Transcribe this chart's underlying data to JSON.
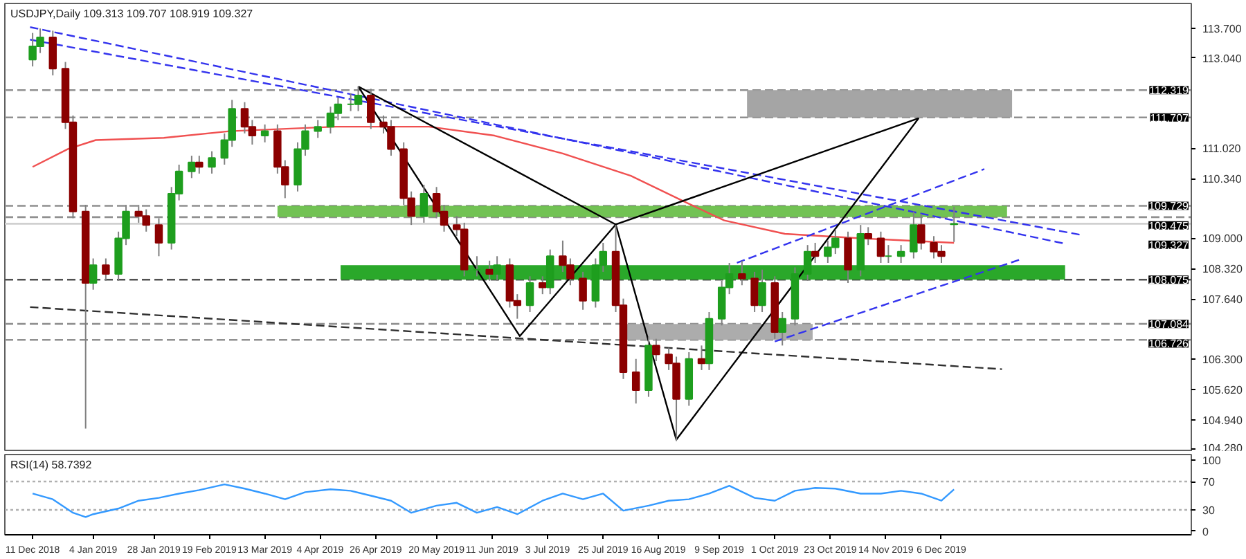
{
  "chart_data": [
    {
      "type": "candlestick",
      "title": "USDJPY,Daily 109.313 109.707 108.919 109.327",
      "tick_labels": "y",
      "grid": false,
      "x": [
        "2018-12-11",
        "2018-12-14",
        "2018-12-19",
        "2018-12-24",
        "2018-12-27",
        "2019-01-01",
        "2019-01-04",
        "2019-01-09",
        "2019-01-14",
        "2019-01-17",
        "2019-01-22",
        "2019-01-25",
        "2019-01-30",
        "2019-02-04",
        "2019-02-07",
        "2019-02-12",
        "2019-02-15",
        "2019-02-20",
        "2019-02-25",
        "2019-02-28",
        "2019-03-05",
        "2019-03-08",
        "2019-03-13",
        "2019-03-18",
        "2019-03-21",
        "2019-03-26",
        "2019-03-29",
        "2019-04-03",
        "2019-04-08",
        "2019-04-11",
        "2019-04-16",
        "2019-04-19",
        "2019-04-24",
        "2019-04-29",
        "2019-05-02",
        "2019-05-07",
        "2019-05-10",
        "2019-05-15",
        "2019-05-20",
        "2019-05-23",
        "2019-05-28",
        "2019-05-31",
        "2019-06-05",
        "2019-06-10",
        "2019-06-13",
        "2019-06-18",
        "2019-06-21",
        "2019-06-26",
        "2019-07-01",
        "2019-07-04",
        "2019-07-09",
        "2019-07-12",
        "2019-07-17",
        "2019-07-22",
        "2019-07-25",
        "2019-07-30",
        "2019-08-02",
        "2019-08-07",
        "2019-08-12",
        "2019-08-15",
        "2019-08-20",
        "2019-08-23",
        "2019-08-28",
        "2019-09-02",
        "2019-09-05",
        "2019-09-10",
        "2019-09-13",
        "2019-09-18",
        "2019-09-23",
        "2019-09-26",
        "2019-10-01",
        "2019-10-04",
        "2019-10-09",
        "2019-10-14",
        "2019-10-17",
        "2019-10-22",
        "2019-10-25",
        "2019-10-30",
        "2019-11-04",
        "2019-11-07",
        "2019-11-12",
        "2019-11-15",
        "2019-11-20",
        "2019-11-25",
        "2019-11-28",
        "2019-12-03",
        "2019-12-06",
        "2019-12-11"
      ],
      "ohlc": [
        [
          113.0,
          113.6,
          112.85,
          113.3
        ],
        [
          113.3,
          113.7,
          113.15,
          113.5
        ],
        [
          113.5,
          113.65,
          112.65,
          112.8
        ],
        [
          112.8,
          112.95,
          111.45,
          111.6
        ],
        [
          111.6,
          111.75,
          109.45,
          109.6
        ],
        [
          109.6,
          109.75,
          104.74,
          108.0
        ],
        [
          108.0,
          108.55,
          107.85,
          108.4
        ],
        [
          108.4,
          108.55,
          108.05,
          108.2
        ],
        [
          108.2,
          109.15,
          108.05,
          109.0
        ],
        [
          109.0,
          109.75,
          108.85,
          109.6
        ],
        [
          109.6,
          109.75,
          109.35,
          109.5
        ],
        [
          109.5,
          109.65,
          109.15,
          109.3
        ],
        [
          109.3,
          109.45,
          108.6,
          108.9
        ],
        [
          108.9,
          110.15,
          108.75,
          110.0
        ],
        [
          110.0,
          110.65,
          109.85,
          110.5
        ],
        [
          110.5,
          110.85,
          110.35,
          110.7
        ],
        [
          110.7,
          110.85,
          110.45,
          110.6
        ],
        [
          110.6,
          110.95,
          110.45,
          110.8
        ],
        [
          110.8,
          111.35,
          110.65,
          111.2
        ],
        [
          111.2,
          112.1,
          111.05,
          111.9
        ],
        [
          111.9,
          112.05,
          111.35,
          111.5
        ],
        [
          111.5,
          111.65,
          111.1,
          111.3
        ],
        [
          111.3,
          111.55,
          111.15,
          111.4
        ],
        [
          111.4,
          111.55,
          110.45,
          110.6
        ],
        [
          110.6,
          110.75,
          109.9,
          110.2
        ],
        [
          110.2,
          111.15,
          110.05,
          111.0
        ],
        [
          111.0,
          111.55,
          110.85,
          111.4
        ],
        [
          111.4,
          111.65,
          111.25,
          111.5
        ],
        [
          111.5,
          111.95,
          111.35,
          111.8
        ],
        [
          111.8,
          112.15,
          111.65,
          112.0
        ],
        [
          112.0,
          112.25,
          111.85,
          112.0
        ],
        [
          112.0,
          112.4,
          111.85,
          112.2
        ],
        [
          112.2,
          112.35,
          111.45,
          111.6
        ],
        [
          111.6,
          111.75,
          111.35,
          111.5
        ],
        [
          111.5,
          111.65,
          110.85,
          111.0
        ],
        [
          111.0,
          111.15,
          109.75,
          109.9
        ],
        [
          109.9,
          110.05,
          109.3,
          109.5
        ],
        [
          109.5,
          110.2,
          109.35,
          110.0
        ],
        [
          110.0,
          110.15,
          109.45,
          109.6
        ],
        [
          109.6,
          109.75,
          109.15,
          109.3
        ],
        [
          109.3,
          109.5,
          109.05,
          109.2
        ],
        [
          109.2,
          109.35,
          108.15,
          108.3
        ],
        [
          108.3,
          108.6,
          108.15,
          108.3
        ],
        [
          108.3,
          108.5,
          108.05,
          108.2
        ],
        [
          108.2,
          108.6,
          108.05,
          108.4
        ],
        [
          108.4,
          108.55,
          107.45,
          107.6
        ],
        [
          107.6,
          107.75,
          107.2,
          107.5
        ],
        [
          107.5,
          108.15,
          107.35,
          108.0
        ],
        [
          108.0,
          108.15,
          107.75,
          107.9
        ],
        [
          107.9,
          108.75,
          107.75,
          108.6
        ],
        [
          108.6,
          108.95,
          108.25,
          108.4
        ],
        [
          108.4,
          108.55,
          107.95,
          108.1
        ],
        [
          108.1,
          108.25,
          107.4,
          107.6
        ],
        [
          107.6,
          108.55,
          107.45,
          108.4
        ],
        [
          108.4,
          108.9,
          108.25,
          108.7
        ],
        [
          108.7,
          109.3,
          107.35,
          107.5
        ],
        [
          107.5,
          107.65,
          105.85,
          106.0
        ],
        [
          106.0,
          106.3,
          105.3,
          105.6
        ],
        [
          105.6,
          106.8,
          105.45,
          106.6
        ],
        [
          106.6,
          106.75,
          106.25,
          106.4
        ],
        [
          106.4,
          106.55,
          106.05,
          106.2
        ],
        [
          106.2,
          106.35,
          104.46,
          105.4
        ],
        [
          105.4,
          106.45,
          105.25,
          106.3
        ],
        [
          106.3,
          106.6,
          106.05,
          106.2
        ],
        [
          106.2,
          107.35,
          106.05,
          107.2
        ],
        [
          107.2,
          108.05,
          107.05,
          107.9
        ],
        [
          107.9,
          108.45,
          107.75,
          108.2
        ],
        [
          108.2,
          108.5,
          107.95,
          108.1
        ],
        [
          108.1,
          108.25,
          107.35,
          107.5
        ],
        [
          107.5,
          108.3,
          107.35,
          108.0
        ],
        [
          108.0,
          108.15,
          106.75,
          106.9
        ],
        [
          106.9,
          107.35,
          106.6,
          107.2
        ],
        [
          107.2,
          108.35,
          107.05,
          108.2
        ],
        [
          108.2,
          108.85,
          108.05,
          108.7
        ],
        [
          108.7,
          108.9,
          108.45,
          108.6
        ],
        [
          108.6,
          108.95,
          108.45,
          108.8
        ],
        [
          108.8,
          109.2,
          108.65,
          109.0
        ],
        [
          109.0,
          109.15,
          108.0,
          108.3
        ],
        [
          108.3,
          109.3,
          108.15,
          109.1
        ],
        [
          109.1,
          109.25,
          108.85,
          109.0
        ],
        [
          109.0,
          109.15,
          108.45,
          108.6
        ],
        [
          108.6,
          108.85,
          108.45,
          108.6
        ],
        [
          108.6,
          108.85,
          108.45,
          108.7
        ],
        [
          108.7,
          109.6,
          108.55,
          109.3
        ],
        [
          109.3,
          109.55,
          108.75,
          108.9
        ],
        [
          108.9,
          109.05,
          108.55,
          108.7
        ],
        [
          108.7,
          108.85,
          108.45,
          108.6
        ],
        [
          109.313,
          109.707,
          108.919,
          109.327
        ]
      ],
      "xlim": [
        "2018-11-30",
        "2020-03-14"
      ],
      "ylim": [
        104.22,
        114.26
      ],
      "yticks": [
        {
          "value": 113.7,
          "label": "113.700"
        },
        {
          "value": 113.04,
          "label": "113.040"
        },
        {
          "value": 111.02,
          "label": "111.020"
        },
        {
          "value": 110.34,
          "label": "110.340"
        },
        {
          "value": 109.0,
          "label": "109.000"
        },
        {
          "value": 108.32,
          "label": "108.320"
        },
        {
          "value": 107.64,
          "label": "107.640"
        },
        {
          "value": 106.3,
          "label": "106.300"
        },
        {
          "value": 105.62,
          "label": "105.620"
        },
        {
          "value": 104.94,
          "label": "104.940"
        },
        {
          "value": 104.28,
          "label": "104.280"
        }
      ],
      "ref_lines": [
        {
          "axis": "y",
          "value": 112.319,
          "label": "112.319",
          "color": "#909090",
          "line_style": "dashed"
        },
        {
          "axis": "y",
          "value": 111.707,
          "label": "111.707",
          "color": "#909090",
          "line_style": "dashed"
        },
        {
          "axis": "y",
          "value": 109.729,
          "label": "109.729",
          "color": "#909090",
          "line_style": "dashed"
        },
        {
          "axis": "y",
          "value": 109.475,
          "label": "109.475",
          "color": "#909090",
          "line_style": "dashed"
        },
        {
          "axis": "y",
          "value": 109.327,
          "label": "109.327",
          "color": "#d0d0d0",
          "line_style": "solid"
        },
        {
          "axis": "y",
          "value": 108.075,
          "label": "108.075",
          "color": "#505050",
          "line_style": "dashed"
        },
        {
          "axis": "y",
          "value": 107.084,
          "label": "107.084",
          "color": "#909090",
          "line_style": "dashed"
        },
        {
          "axis": "y",
          "value": 106.726,
          "label": "106.726",
          "color": "#909090",
          "line_style": "dashed"
        }
      ],
      "series": [
        {
          "type": "line",
          "color": "#a0a0a0",
          "x": [
            "2019-09-20",
            "2020-01-03"
          ],
          "values": [
            null,
            null
          ],
          "upper": [
            112.319,
            112.319
          ],
          "lower": [
            111.707,
            111.707
          ]
        },
        {
          "type": "line",
          "color": "#6abf4b",
          "x": [
            "2019-03-18",
            "2020-01-01"
          ],
          "values": [
            null,
            null
          ],
          "upper": [
            109.729,
            109.729
          ],
          "lower": [
            109.475,
            109.475
          ]
        },
        {
          "type": "line",
          "color": "#1fa31f",
          "x": [
            "2019-04-12",
            "2020-01-24"
          ],
          "values": [
            null,
            null
          ],
          "upper": [
            108.4,
            108.4
          ],
          "lower": [
            108.075,
            108.075
          ]
        },
        {
          "type": "line",
          "color": "#a8a8a8",
          "x": [
            "2019-08-02",
            "2019-10-16"
          ],
          "values": [
            null,
            null
          ],
          "upper": [
            107.084,
            107.084
          ],
          "lower": [
            106.726,
            106.726
          ]
        },
        {
          "type": "line",
          "color": "#f05050",
          "line_style": "solid",
          "x": [
            "2018-12-11",
            "2018-12-25",
            "2019-01-05",
            "2019-02-01",
            "2019-02-27",
            "2019-04-10",
            "2019-05-17",
            "2019-06-12",
            "2019-07-09",
            "2019-08-05",
            "2019-08-27",
            "2019-09-11",
            "2019-10-05",
            "2019-11-04",
            "2019-12-11"
          ],
          "values": [
            110.6,
            111.0,
            111.2,
            111.25,
            111.4,
            111.5,
            111.5,
            111.3,
            110.9,
            110.4,
            109.8,
            109.4,
            109.1,
            109.0,
            108.9
          ]
        },
        {
          "type": "line",
          "color": "#3333ee",
          "line_style": "dashed",
          "x": [
            "2018-12-10",
            "2020-01-31"
          ],
          "values": [
            113.45,
            109.07
          ]
        },
        {
          "type": "line",
          "color": "#3333ee",
          "line_style": "dashed",
          "x": [
            "2018-12-10",
            "2020-01-24"
          ],
          "values": [
            113.73,
            108.88
          ]
        },
        {
          "type": "line",
          "color": "#3333ee",
          "line_style": "dashed",
          "x": [
            "2019-09-16",
            "2019-12-23"
          ],
          "values": [
            108.45,
            110.55
          ]
        },
        {
          "type": "line",
          "color": "#3333ee",
          "line_style": "dashed",
          "x": [
            "2019-10-01",
            "2020-01-07"
          ],
          "values": [
            106.69,
            108.54
          ]
        },
        {
          "type": "line",
          "color": "#303030",
          "line_style": "dashed",
          "x": [
            "2018-12-10",
            "2019-12-30"
          ],
          "values": [
            107.46,
            106.07
          ]
        },
        {
          "type": "line",
          "color": "#000000",
          "line_style": "solid",
          "x": [
            "2019-04-19",
            "2019-06-22",
            "2019-07-30",
            "2019-08-23",
            "2019-11-27"
          ],
          "values": [
            112.4,
            106.81,
            109.31,
            104.49,
            111.69
          ]
        },
        {
          "type": "line",
          "color": "#000000",
          "line_style": "solid",
          "x": [
            "2019-04-19",
            "2019-07-30",
            "2019-11-27"
          ],
          "values": [
            112.4,
            109.31,
            111.69
          ]
        }
      ]
    },
    {
      "type": "line",
      "title": "RSI(14) 58.7392",
      "grid": false,
      "xlim": [
        "2018-11-30",
        "2020-03-14"
      ],
      "ylim": [
        -5,
        108
      ],
      "yticks": [
        100,
        70,
        30,
        0
      ],
      "xticks": [
        {
          "value": "2018-12-11",
          "label": "11 Dec 2018"
        },
        {
          "value": "2019-01-04",
          "label": "4 Jan 2019"
        },
        {
          "value": "2019-01-28",
          "label": "28 Jan 2019"
        },
        {
          "value": "2019-02-19",
          "label": "19 Feb 2019"
        },
        {
          "value": "2019-03-13",
          "label": "13 Mar 2019"
        },
        {
          "value": "2019-04-04",
          "label": "4 Apr 2019"
        },
        {
          "value": "2019-04-26",
          "label": "26 Apr 2019"
        },
        {
          "value": "2019-05-20",
          "label": "20 May 2019"
        },
        {
          "value": "2019-06-11",
          "label": "11 Jun 2019"
        },
        {
          "value": "2019-07-03",
          "label": "3 Jul 2019"
        },
        {
          "value": "2019-07-25",
          "label": "25 Jul 2019"
        },
        {
          "value": "2019-08-16",
          "label": "16 Aug 2019"
        },
        {
          "value": "2019-09-09",
          "label": "9 Sep 2019"
        },
        {
          "value": "2019-10-01",
          "label": "1 Oct 2019"
        },
        {
          "value": "2019-10-23",
          "label": "23 Oct 2019"
        },
        {
          "value": "2019-11-14",
          "label": "14 Nov 2019"
        },
        {
          "value": "2019-12-06",
          "label": "6 Dec 2019"
        }
      ],
      "ref_lines": [
        {
          "axis": "y",
          "value": 70,
          "color": "#b0b0b0",
          "line_style": "dotted"
        },
        {
          "axis": "y",
          "value": 30,
          "color": "#b0b0b0",
          "line_style": "dotted"
        }
      ],
      "series": [
        {
          "color": "#3399ff",
          "x": [
            "2018-12-11",
            "2018-12-19",
            "2018-12-27",
            "2019-01-01",
            "2019-01-04",
            "2019-01-14",
            "2019-01-22",
            "2019-01-30",
            "2019-02-07",
            "2019-02-15",
            "2019-02-25",
            "2019-03-05",
            "2019-03-13",
            "2019-03-21",
            "2019-03-29",
            "2019-04-08",
            "2019-04-16",
            "2019-04-24",
            "2019-05-02",
            "2019-05-10",
            "2019-05-20",
            "2019-05-28",
            "2019-06-05",
            "2019-06-13",
            "2019-06-21",
            "2019-07-01",
            "2019-07-09",
            "2019-07-17",
            "2019-07-25",
            "2019-08-02",
            "2019-08-12",
            "2019-08-20",
            "2019-08-28",
            "2019-09-05",
            "2019-09-13",
            "2019-09-23",
            "2019-10-01",
            "2019-10-09",
            "2019-10-17",
            "2019-10-25",
            "2019-11-04",
            "2019-11-12",
            "2019-11-20",
            "2019-11-28",
            "2019-12-06",
            "2019-12-11"
          ],
          "values": [
            53,
            45,
            26,
            20,
            24,
            32,
            43,
            47,
            53,
            58,
            66,
            60,
            53,
            45,
            55,
            59,
            57,
            50,
            43,
            26,
            36,
            40,
            26,
            34,
            24,
            43,
            53,
            45,
            53,
            29,
            36,
            43,
            45,
            53,
            64,
            47,
            43,
            57,
            61,
            60,
            53,
            53,
            57,
            53,
            43,
            59
          ]
        }
      ]
    }
  ]
}
